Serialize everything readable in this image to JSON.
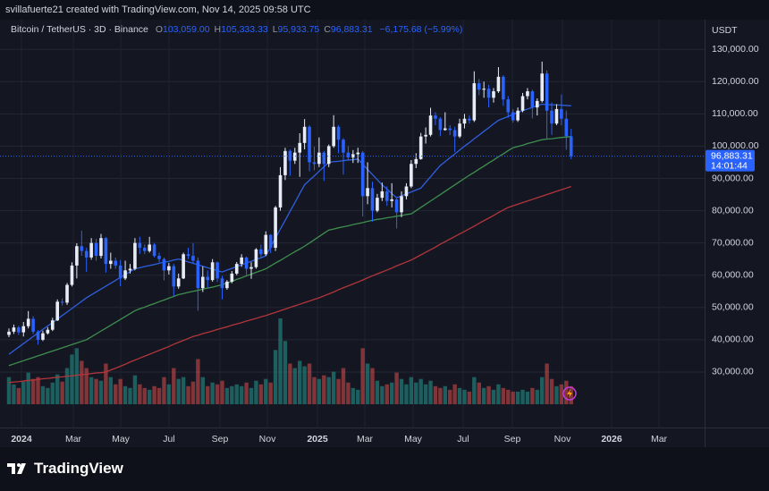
{
  "chart_data": {
    "type": "candlestick",
    "author_line": "svillafuerte21 created with TradingView.com, Nov 14, 2025 09:58 UTC",
    "symbol": "Bitcoin / TetherUS · 3D · Binance",
    "ohlc_legend": [
      {
        "key": "O",
        "label": "103,059.00"
      },
      {
        "key": "H",
        "label": "105,333.33"
      },
      {
        "key": "L",
        "label": "95,933.75"
      },
      {
        "key": "C",
        "label": "96,883.31"
      }
    ],
    "change": "−6,175.68 (−5.99%)",
    "currency": "USDT",
    "last_price_label": "96,883.31",
    "countdown": "14:01:44",
    "up_color": "#e8ecf5",
    "down_color": "#2962ff",
    "volume_up_color": "#26a69a",
    "volume_down_color": "#ef5350",
    "grid": true,
    "ylim": [
      12800,
      139200
    ],
    "yticks": [
      {
        "value": 30000,
        "label": "30,000.00"
      },
      {
        "value": 40000,
        "label": "40,000.00"
      },
      {
        "value": 50000,
        "label": "50,000.00"
      },
      {
        "value": 60000,
        "label": "60,000.00"
      },
      {
        "value": 70000,
        "label": "70,000.00"
      },
      {
        "value": 80000,
        "label": "80,000.00"
      },
      {
        "value": 90000,
        "label": "90,000.00"
      },
      {
        "value": 100000,
        "label": "100,000.00"
      },
      {
        "value": 110000,
        "label": "110,000.00"
      },
      {
        "value": 120000,
        "label": "120,000.00"
      },
      {
        "value": 130000,
        "label": "130,000.00"
      }
    ],
    "x_labels": [
      "2024",
      "Mar",
      "May",
      "Jul",
      "Sep",
      "Nov",
      "2025",
      "Mar",
      "May",
      "Jul",
      "Sep",
      "Nov",
      "2026",
      "Mar"
    ],
    "ohlc": [
      [
        41500,
        43500,
        40800,
        42500
      ],
      [
        42500,
        44700,
        41800,
        43800
      ],
      [
        43800,
        44300,
        41500,
        42300
      ],
      [
        42300,
        45500,
        41000,
        44200
      ],
      [
        44200,
        48900,
        43500,
        46500
      ],
      [
        46500,
        47300,
        41800,
        42500
      ],
      [
        42500,
        43000,
        38500,
        40000
      ],
      [
        40000,
        42800,
        39600,
        42000
      ],
      [
        42000,
        43900,
        41600,
        43100
      ],
      [
        43100,
        46800,
        42700,
        46000
      ],
      [
        46000,
        52500,
        45800,
        51800
      ],
      [
        51800,
        52800,
        50600,
        51500
      ],
      [
        51500,
        57600,
        50800,
        57000
      ],
      [
        57000,
        64000,
        56500,
        63000
      ],
      [
        63000,
        69900,
        59000,
        69000
      ],
      [
        69000,
        73800,
        66000,
        67500
      ],
      [
        67500,
        68500,
        61000,
        65500
      ],
      [
        65500,
        71500,
        64800,
        70000
      ],
      [
        70000,
        71300,
        64500,
        66000
      ],
      [
        66000,
        72800,
        65200,
        71500
      ],
      [
        71500,
        71800,
        60800,
        63500
      ],
      [
        63500,
        67000,
        62000,
        64500
      ],
      [
        64500,
        65500,
        62000,
        63000
      ],
      [
        63000,
        64700,
        56600,
        59000
      ],
      [
        59000,
        64500,
        58500,
        61500
      ],
      [
        61500,
        63500,
        60500,
        62000
      ],
      [
        62000,
        71500,
        61500,
        70000
      ],
      [
        70000,
        71900,
        66600,
        68500
      ],
      [
        68500,
        69500,
        66500,
        67500
      ],
      [
        67500,
        71900,
        67000,
        69500
      ],
      [
        69500,
        70000,
        65500,
        66000
      ],
      [
        66000,
        67000,
        64000,
        65000
      ],
      [
        65000,
        65500,
        58400,
        61500
      ],
      [
        61500,
        63800,
        60200,
        62800
      ],
      [
        62800,
        63500,
        53500,
        56500
      ],
      [
        56500,
        60500,
        55800,
        59000
      ],
      [
        59000,
        67000,
        58800,
        66500
      ],
      [
        66500,
        68500,
        65000,
        66000
      ],
      [
        66000,
        70000,
        63500,
        64500
      ],
      [
        64500,
        65500,
        49000,
        56000
      ],
      [
        56000,
        62700,
        54800,
        59500
      ],
      [
        59500,
        61500,
        56100,
        58500
      ],
      [
        58500,
        65000,
        58000,
        64000
      ],
      [
        64000,
        64200,
        57900,
        59000
      ],
      [
        59000,
        59800,
        52500,
        56000
      ],
      [
        56000,
        58500,
        55500,
        58000
      ],
      [
        58000,
        61300,
        57500,
        60500
      ],
      [
        60500,
        64100,
        60000,
        63500
      ],
      [
        63500,
        66500,
        62600,
        65500
      ],
      [
        65500,
        65800,
        60000,
        62000
      ],
      [
        62000,
        64000,
        58900,
        62500
      ],
      [
        62500,
        68400,
        62000,
        68000
      ],
      [
        68000,
        69500,
        65200,
        66500
      ],
      [
        66500,
        73600,
        66000,
        72500
      ],
      [
        72500,
        72700,
        66800,
        68500
      ],
      [
        68500,
        81500,
        67500,
        81000
      ],
      [
        81000,
        93500,
        80000,
        91000
      ],
      [
        91000,
        99500,
        89500,
        98500
      ],
      [
        98500,
        99000,
        90800,
        95500
      ],
      [
        95500,
        99500,
        94500,
        98000
      ],
      [
        98000,
        104000,
        90500,
        101000
      ],
      [
        101000,
        108400,
        99000,
        106000
      ],
      [
        106000,
        106500,
        92200,
        95000
      ],
      [
        95000,
        99800,
        92500,
        94500
      ],
      [
        94500,
        102700,
        93500,
        98000
      ],
      [
        98000,
        98500,
        89200,
        94500
      ],
      [
        94500,
        100500,
        93500,
        100000
      ],
      [
        100000,
        109600,
        99500,
        106000
      ],
      [
        106000,
        106500,
        97800,
        102000
      ],
      [
        102000,
        102500,
        91200,
        98000
      ],
      [
        98000,
        100000,
        95500,
        96500
      ],
      [
        96500,
        98800,
        94800,
        97500
      ],
      [
        97500,
        99500,
        94800,
        98000
      ],
      [
        98000,
        98500,
        78200,
        84500
      ],
      [
        84500,
        95000,
        82000,
        87000
      ],
      [
        87000,
        89000,
        76600,
        80000
      ],
      [
        80000,
        85200,
        79500,
        84000
      ],
      [
        84000,
        88700,
        83000,
        86000
      ],
      [
        86000,
        87500,
        81500,
        83000
      ],
      [
        83000,
        88500,
        81000,
        83500
      ],
      [
        83500,
        84000,
        74500,
        79500
      ],
      [
        79500,
        86000,
        78000,
        84500
      ],
      [
        84500,
        88500,
        83500,
        87500
      ],
      [
        87500,
        95700,
        87000,
        94500
      ],
      [
        94500,
        97800,
        93200,
        96000
      ],
      [
        96000,
        104100,
        95800,
        103000
      ],
      [
        103000,
        105800,
        100800,
        103500
      ],
      [
        103500,
        111900,
        103000,
        109500
      ],
      [
        109500,
        110500,
        106500,
        108500
      ],
      [
        108500,
        109000,
        103100,
        105000
      ],
      [
        105000,
        110500,
        104800,
        105500
      ],
      [
        105500,
        106500,
        103400,
        105000
      ],
      [
        105000,
        106000,
        98200,
        103000
      ],
      [
        103000,
        108500,
        102500,
        107000
      ],
      [
        107000,
        110000,
        105500,
        108500
      ],
      [
        108500,
        109500,
        107000,
        108000
      ],
      [
        108000,
        123200,
        107500,
        119500
      ],
      [
        119500,
        120800,
        115800,
        117500
      ],
      [
        117500,
        120000,
        115000,
        117800
      ],
      [
        117800,
        119000,
        112000,
        115000
      ],
      [
        115000,
        118000,
        113500,
        117000
      ],
      [
        117000,
        124500,
        116500,
        121500
      ],
      [
        121500,
        122000,
        112500,
        114500
      ],
      [
        114500,
        115500,
        108800,
        110500
      ],
      [
        110500,
        111500,
        107300,
        108000
      ],
      [
        108000,
        112000,
        107500,
        111000
      ],
      [
        111000,
        116500,
        110500,
        115500
      ],
      [
        115500,
        118000,
        114500,
        117000
      ],
      [
        117000,
        117500,
        108600,
        112000
      ],
      [
        112000,
        114800,
        109500,
        114000
      ],
      [
        114000,
        126200,
        113500,
        122500
      ],
      [
        122500,
        123500,
        102000,
        111000
      ],
      [
        111000,
        113500,
        103500,
        107000
      ],
      [
        107000,
        113000,
        106500,
        111500
      ],
      [
        111500,
        116000,
        106500,
        108500
      ],
      [
        108500,
        111000,
        98900,
        103059
      ],
      [
        103059,
        105333.33,
        95933.75,
        96883.31
      ]
    ],
    "volumes": [
      30,
      22,
      18,
      25,
      35,
      28,
      30,
      20,
      18,
      24,
      33,
      25,
      40,
      55,
      62,
      48,
      40,
      30,
      28,
      26,
      45,
      30,
      22,
      28,
      20,
      18,
      32,
      22,
      18,
      16,
      20,
      18,
      30,
      22,
      40,
      28,
      30,
      20,
      25,
      50,
      30,
      20,
      24,
      22,
      26,
      18,
      20,
      22,
      20,
      24,
      18,
      26,
      22,
      28,
      24,
      60,
      95,
      70,
      45,
      40,
      48,
      42,
      45,
      30,
      28,
      32,
      30,
      36,
      28,
      40,
      24,
      18,
      16,
      62,
      45,
      40,
      26,
      20,
      22,
      24,
      35,
      28,
      22,
      30,
      24,
      28,
      22,
      26,
      20,
      18,
      20,
      16,
      22,
      18,
      16,
      14,
      30,
      24,
      18,
      20,
      16,
      22,
      18,
      16,
      14,
      14,
      16,
      14,
      18,
      16,
      30,
      45,
      28,
      20,
      22,
      26,
      20
    ],
    "moving_averages": [
      {
        "color": "#2f5fe0",
        "values": [
          35500,
          36600,
          37700,
          38800,
          39900,
          41000,
          42100,
          43200,
          44300,
          45300,
          46400,
          47500,
          48600,
          49700,
          50800,
          51900,
          53000,
          53900,
          54800,
          55700,
          56600,
          57500,
          58400,
          59300,
          60200,
          61100,
          62000,
          62300,
          62700,
          63000,
          63300,
          63700,
          64000,
          64300,
          64700,
          65000,
          64600,
          64100,
          63700,
          63200,
          62800,
          62300,
          61900,
          61400,
          61000,
          61600,
          62100,
          62700,
          63200,
          63800,
          64300,
          64900,
          65400,
          66000,
          68800,
          71500,
          74300,
          77000,
          79800,
          82500,
          85300,
          88000,
          89400,
          90800,
          92200,
          93600,
          95000,
          95200,
          95300,
          95500,
          95700,
          95800,
          96000,
          94400,
          92800,
          91200,
          89600,
          88000,
          86700,
          85300,
          84000,
          84600,
          85200,
          85800,
          86400,
          87000,
          88800,
          90500,
          92300,
          94000,
          95200,
          96400,
          97600,
          98800,
          100000,
          101100,
          102300,
          103400,
          104600,
          105700,
          106900,
          108000,
          108600,
          109200,
          109800,
          110400,
          111000,
          111500,
          112000,
          112500,
          113000,
          112900,
          112800,
          112800,
          112700,
          112600,
          112500
        ]
      },
      {
        "color": "#3f8f4e",
        "values": [
          32000,
          32500,
          33000,
          33500,
          34000,
          34500,
          35000,
          35500,
          36000,
          36500,
          37000,
          37500,
          38000,
          38500,
          39000,
          39500,
          40000,
          40900,
          41800,
          42700,
          43600,
          44500,
          45400,
          46300,
          47200,
          48100,
          49000,
          49600,
          50100,
          50700,
          51200,
          51800,
          52300,
          52900,
          53400,
          54000,
          54300,
          54700,
          55000,
          55300,
          55700,
          56000,
          56300,
          56700,
          57000,
          57600,
          58100,
          58700,
          59200,
          59800,
          60300,
          60900,
          61400,
          62000,
          62900,
          63800,
          64600,
          65500,
          66400,
          67300,
          68100,
          69000,
          70000,
          71000,
          72000,
          73000,
          74000,
          74300,
          74700,
          75000,
          75300,
          75700,
          76000,
          76300,
          76700,
          77000,
          77300,
          77500,
          77800,
          78000,
          78300,
          78500,
          78800,
          79000,
          80000,
          81000,
          82000,
          83000,
          84000,
          85000,
          86000,
          87000,
          88000,
          89000,
          90000,
          91000,
          91900,
          92900,
          93800,
          94800,
          95700,
          96700,
          97600,
          98600,
          99500,
          99900,
          100300,
          100800,
          101200,
          101600,
          102000,
          102200,
          102300,
          102500,
          102700,
          102800,
          103000
        ]
      },
      {
        "color": "#b3353c",
        "values": [
          26700,
          26900,
          27000,
          27200,
          27400,
          27500,
          27700,
          27900,
          28000,
          28200,
          28400,
          28500,
          28700,
          28800,
          29000,
          29200,
          29300,
          29500,
          29700,
          29800,
          30000,
          30600,
          31200,
          31800,
          32400,
          33100,
          33700,
          34300,
          34900,
          35500,
          36100,
          36700,
          37300,
          37900,
          38600,
          39200,
          39800,
          40400,
          41000,
          41400,
          41900,
          42300,
          42700,
          43200,
          43600,
          44000,
          44500,
          44900,
          45300,
          45800,
          46200,
          46600,
          47100,
          47500,
          48000,
          48500,
          49000,
          49500,
          50000,
          50500,
          51000,
          51500,
          52000,
          52500,
          53000,
          53600,
          54200,
          54800,
          55500,
          56100,
          56700,
          57300,
          57900,
          58500,
          59200,
          59800,
          60400,
          61000,
          61600,
          62200,
          62900,
          63500,
          64100,
          64700,
          65500,
          66300,
          67100,
          67900,
          68700,
          69600,
          70400,
          71200,
          72000,
          72800,
          73600,
          74400,
          75200,
          76100,
          76900,
          77700,
          78500,
          79400,
          80200,
          81000,
          81500,
          82000,
          82500,
          83000,
          83500,
          84000,
          84500,
          85000,
          85500,
          86000,
          86500,
          87000,
          87500
        ]
      }
    ]
  },
  "brand": "TradingView"
}
